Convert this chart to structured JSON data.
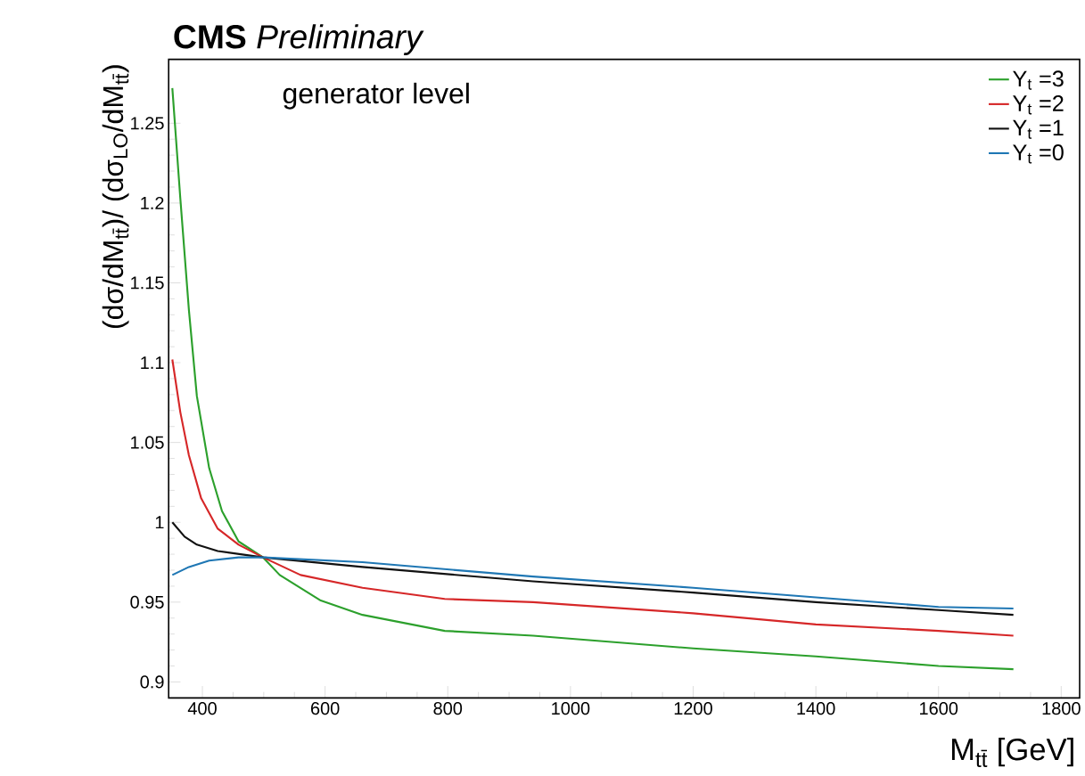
{
  "chart_data": {
    "type": "line",
    "title": "**CMS** *Preliminary*",
    "xlabel": "M$_{tt̄}$ [GeV]",
    "ylabel": "(dσ/dM$_{tt̄}$)/ (dσ$_{LO}$/dM$_{tt̄}$)",
    "annotations": [
      "generator level"
    ],
    "xlim": [
      345,
      1830
    ],
    "ylim": [
      0.89,
      1.29
    ],
    "xticks": [
      400,
      600,
      800,
      1000,
      1200,
      1400,
      1600,
      1800
    ],
    "yticks": [
      0.9,
      0.95,
      1,
      1.05,
      1.1,
      1.15,
      1.2,
      1.25
    ],
    "legend": "top right",
    "grid": false,
    "line_style": "solid",
    "series": [
      {
        "name": "Y$_{t}$ =3",
        "color": "#2ca02c",
        "x": [
          351,
          364,
          378,
          391,
          411,
          432,
          459,
          499,
          526,
          593,
          661,
          795,
          939,
          1200,
          1400,
          1600,
          1722
        ],
        "values": [
          1.272,
          1.203,
          1.133,
          1.079,
          1.034,
          1.007,
          0.988,
          0.978,
          0.967,
          0.951,
          0.942,
          0.932,
          0.929,
          0.921,
          0.916,
          0.91,
          0.908
        ]
      },
      {
        "name": "Y$_{t}$ =2",
        "color": "#d62728",
        "x": [
          351,
          364,
          378,
          398,
          425,
          459,
          499,
          560,
          661,
          795,
          939,
          1200,
          1400,
          1600,
          1722
        ],
        "values": [
          1.102,
          1.069,
          1.042,
          1.015,
          0.996,
          0.986,
          0.978,
          0.967,
          0.959,
          0.952,
          0.95,
          0.943,
          0.936,
          0.932,
          0.929
        ]
      },
      {
        "name": "Y$_{t}$ =1",
        "color": "#111111",
        "x": [
          351,
          371,
          391,
          425,
          499,
          661,
          939,
          1200,
          1400,
          1600,
          1722
        ],
        "values": [
          1.0,
          0.991,
          0.986,
          0.982,
          0.978,
          0.972,
          0.963,
          0.956,
          0.95,
          0.945,
          0.942
        ]
      },
      {
        "name": "Y$_{t}$ =0",
        "color": "#1f77b4",
        "x": [
          351,
          378,
          411,
          459,
          499,
          661,
          939,
          1200,
          1400,
          1600,
          1722
        ],
        "values": [
          0.967,
          0.972,
          0.976,
          0.978,
          0.978,
          0.975,
          0.966,
          0.959,
          0.953,
          0.947,
          0.946
        ]
      }
    ]
  }
}
